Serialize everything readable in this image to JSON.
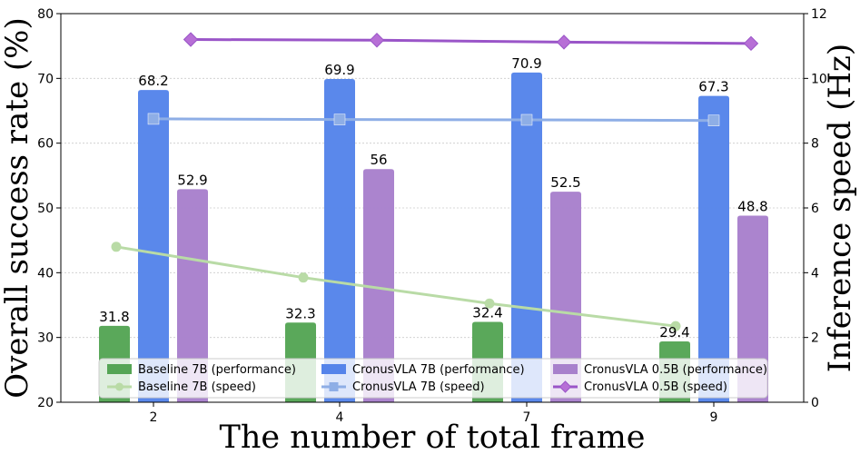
{
  "chart_data": {
    "type": "bar",
    "title": "",
    "xlabel": "The number of total frame",
    "ylabel_left": "Overall success rate (%)",
    "ylabel_right": "Inference speed  (Hz)",
    "categories": [
      "2",
      "4",
      "7",
      "9"
    ],
    "ylim_left": [
      20,
      80
    ],
    "yticks_left": [
      20,
      30,
      40,
      50,
      60,
      70,
      80
    ],
    "ylim_right": [
      0,
      12
    ],
    "yticks_right": [
      0,
      2,
      4,
      6,
      8,
      10,
      12
    ],
    "grid": true,
    "legend_position": "bottom",
    "bar_series": [
      {
        "name": "Baseline 7B (performance)",
        "color": "#55a555",
        "values": [
          31.8,
          32.3,
          32.4,
          29.4
        ]
      },
      {
        "name": "CronusVLA 7B (performance)",
        "color": "#5584ea",
        "values": [
          68.2,
          69.9,
          70.9,
          67.3
        ]
      },
      {
        "name": "CronusVLA 0.5B (performance)",
        "color": "#a880cc",
        "values": [
          52.9,
          56,
          52.5,
          48.8
        ]
      }
    ],
    "line_series": [
      {
        "name": "Baseline 7B (speed)",
        "color": "#b9dba6",
        "marker": "circle",
        "values": [
          4.8,
          3.85,
          3.05,
          2.35
        ]
      },
      {
        "name": "CronusVLA 7B (speed)",
        "color": "#8eaee6",
        "marker": "square",
        "values": [
          8.75,
          8.73,
          8.72,
          8.7
        ]
      },
      {
        "name": "CronusVLA 0.5B (speed)",
        "color": "#9a55c8",
        "marker": "diamond",
        "values": [
          11.2,
          11.18,
          11.12,
          11.08
        ]
      }
    ]
  }
}
